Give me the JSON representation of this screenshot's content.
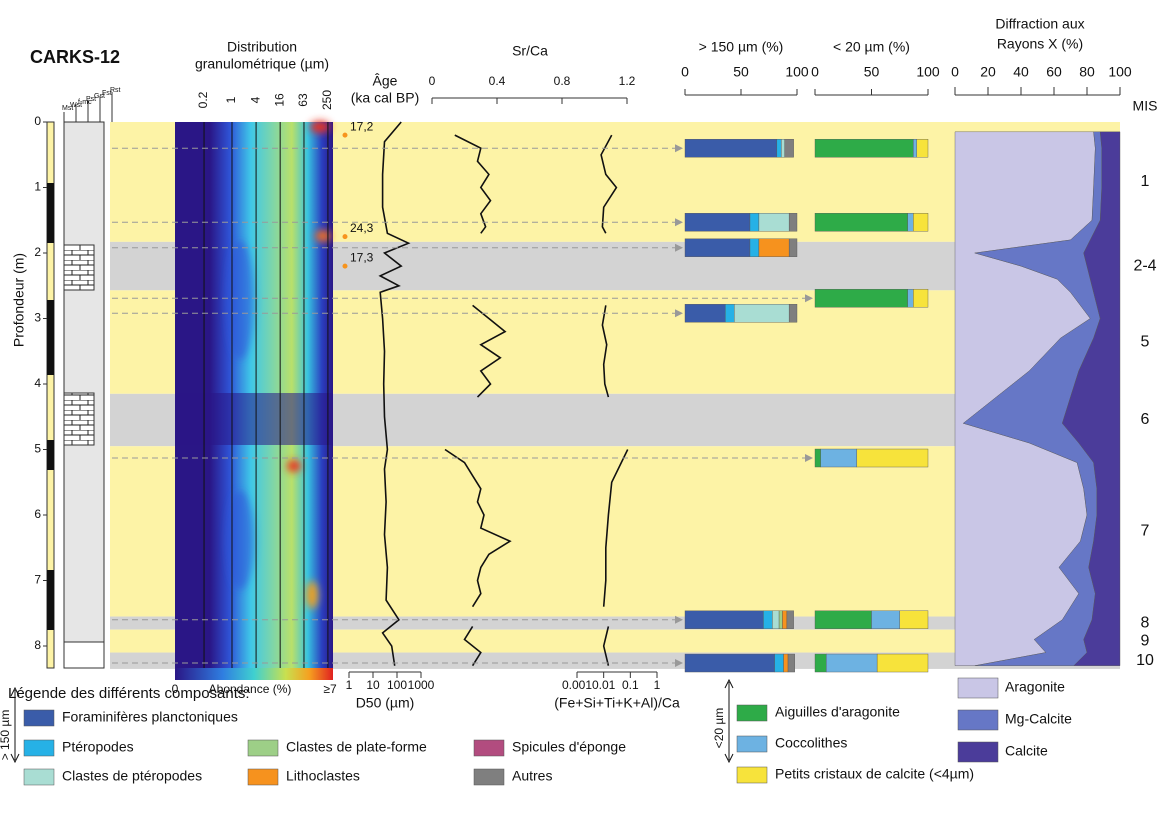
{
  "chart_data": {
    "type": "core-log",
    "title": "CARKS-12",
    "depth": {
      "label": "Profondeur (m)",
      "lim": [
        0,
        8.35
      ],
      "ticks": [
        0,
        1,
        2,
        3,
        4,
        5,
        6,
        7,
        8
      ]
    },
    "lithology_labels": [
      "Mst",
      "Wst",
      "f-mc",
      "Pst",
      "Gst",
      "Fst",
      "Rst"
    ],
    "mis": {
      "label": "MIS",
      "stages": [
        {
          "name": "1",
          "top": 0,
          "bottom": 1.83,
          "color": "#fdf3a6"
        },
        {
          "name": "2-4",
          "top": 1.83,
          "bottom": 2.57,
          "color": "#d3d3d3"
        },
        {
          "name": "5",
          "top": 2.57,
          "bottom": 4.15,
          "color": "#fdf3a6"
        },
        {
          "name": "6",
          "top": 4.15,
          "bottom": 4.95,
          "color": "#d3d3d3"
        },
        {
          "name": "7",
          "top": 4.95,
          "bottom": 7.55,
          "color": "#fdf3a6"
        },
        {
          "name": "8",
          "top": 7.55,
          "bottom": 7.75,
          "color": "#d3d3d3"
        },
        {
          "name": "9",
          "top": 7.75,
          "bottom": 8.1,
          "color": "#fdf3a6"
        },
        {
          "name": "10",
          "top": 8.1,
          "bottom": 8.35,
          "color": "#d3d3d3"
        }
      ]
    },
    "grain_size": {
      "title": [
        "Distribution",
        "granulométrique (µm)"
      ],
      "ticks": [
        0.2,
        1,
        4,
        16,
        63,
        250
      ],
      "colorbar": {
        "label": "Abondance (%)",
        "min_label": "0",
        "max_label": "≥7"
      }
    },
    "age": {
      "label": [
        "Âge",
        "(ka cal BP)"
      ],
      "color": "#f7941d",
      "points": [
        {
          "depth": 0.2,
          "label": "17,2"
        },
        {
          "depth": 1.75,
          "label": "24,3"
        },
        {
          "depth": 2.2,
          "label": "17,3"
        }
      ]
    },
    "d50": {
      "label": "D50 (µm)",
      "log": true,
      "xticks": [
        1,
        10,
        100,
        1000
      ],
      "depth": [
        0,
        0.3,
        0.8,
        1.3,
        1.7,
        1.85,
        2.0,
        2.2,
        2.35,
        2.5,
        2.6,
        3.0,
        3.5,
        4.0,
        4.5,
        5.0,
        5.3,
        5.8,
        6.3,
        6.8,
        7.3,
        7.6,
        7.8,
        8.0,
        8.3
      ],
      "values": [
        150,
        30,
        25,
        25,
        40,
        300,
        30,
        150,
        20,
        120,
        20,
        25,
        30,
        28,
        30,
        40,
        30,
        35,
        30,
        40,
        35,
        120,
        25,
        60,
        80
      ]
    },
    "srca": {
      "label": "Sr/Ca",
      "xlim": [
        0,
        1.2
      ],
      "xticks": [
        0,
        0.4,
        0.8,
        1.2
      ],
      "depth": [
        0.2,
        0.4,
        0.6,
        0.8,
        1.0,
        1.2,
        1.4,
        1.6,
        1.7,
        null,
        2.8,
        3.0,
        3.2,
        3.4,
        3.6,
        3.8,
        4.0,
        4.2,
        null,
        5.0,
        5.2,
        5.4,
        5.6,
        5.8,
        6.0,
        6.2,
        6.4,
        6.6,
        6.8,
        7.0,
        7.2,
        7.4,
        null,
        7.7,
        7.9,
        8.1,
        8.3
      ],
      "values": [
        0.14,
        0.3,
        0.28,
        0.35,
        0.3,
        0.36,
        0.3,
        0.33,
        0.3,
        null,
        0.25,
        0.35,
        0.45,
        0.3,
        0.42,
        0.3,
        0.36,
        0.28,
        null,
        0.08,
        0.2,
        0.25,
        0.3,
        0.28,
        0.32,
        0.3,
        0.48,
        0.35,
        0.3,
        0.28,
        0.3,
        0.25,
        null,
        0.25,
        0.2,
        0.3,
        0.25
      ]
    },
    "fe": {
      "label": "(Fe+Si+Ti+K+Al)/Ca",
      "log": true,
      "xlim": [
        0.001,
        1
      ],
      "xticks": [
        0.001,
        0.01,
        0.1,
        1
      ],
      "depth": [
        0.2,
        0.5,
        0.8,
        1.0,
        1.3,
        1.6,
        1.7,
        null,
        2.8,
        3.1,
        3.4,
        3.7,
        4.0,
        4.2,
        null,
        5.0,
        5.5,
        6.0,
        6.5,
        7.0,
        7.4,
        null,
        7.7,
        8.0,
        8.3
      ],
      "values": [
        0.02,
        0.008,
        0.012,
        0.03,
        0.01,
        0.009,
        0.012,
        null,
        0.012,
        0.009,
        0.013,
        0.01,
        0.011,
        0.015,
        null,
        0.08,
        0.02,
        0.015,
        0.012,
        0.012,
        0.01,
        null,
        0.015,
        0.01,
        0.015
      ]
    },
    "coarse": {
      "title": "> 150 µm (%)",
      "xlim": [
        0,
        100
      ],
      "xticks": [
        0,
        50,
        100
      ],
      "components": [
        {
          "name": "Foraminifères planctoniques",
          "color": "#3a5ca9"
        },
        {
          "name": "Ptéropodes",
          "color": "#26b1e6"
        },
        {
          "name": "Clastes de ptéropodes",
          "color": "#a9ddd3"
        },
        {
          "name": "Clastes de plate-forme",
          "color": "#9dcf87"
        },
        {
          "name": "Lithoclastes",
          "color": "#f6921e"
        },
        {
          "name": "Spicules d'éponge",
          "color": "#b24c7f"
        },
        {
          "name": "Autres",
          "color": "#7f7f7f"
        }
      ]
    },
    "fine": {
      "title": "< 20 µm (%)",
      "xlim": [
        0,
        100
      ],
      "xticks": [
        0,
        50,
        100
      ],
      "components": [
        {
          "name": "Aiguilles d'aragonite",
          "color": "#2eab48"
        },
        {
          "name": "Coccolithes",
          "color": "#6db2e2"
        },
        {
          "name": "Petits cristaux de calcite (<4µm)",
          "color": "#f7e33b"
        }
      ]
    },
    "samples": [
      {
        "depth": 0.4,
        "coarse": [
          82,
          4,
          3,
          0,
          0,
          0,
          8
        ],
        "fine": [
          87,
          3,
          10
        ]
      },
      {
        "depth": 1.53,
        "coarse": [
          58,
          8,
          27,
          0,
          0,
          0,
          7
        ],
        "fine": [
          82,
          5,
          13
        ]
      },
      {
        "depth": 1.92,
        "coarse": [
          58,
          8,
          0,
          0,
          27,
          0,
          7
        ],
        "fine": null
      },
      {
        "depth": 2.69,
        "coarse": null,
        "fine": [
          82,
          5,
          13
        ]
      },
      {
        "depth": 2.92,
        "coarse": [
          36,
          8,
          49,
          0,
          0,
          0,
          7
        ],
        "fine": null
      },
      {
        "depth": 5.13,
        "coarse": null,
        "fine": [
          5,
          32,
          63
        ]
      },
      {
        "depth": 7.6,
        "coarse": [
          70,
          8,
          6,
          3,
          4,
          0,
          6
        ],
        "fine": [
          50,
          25,
          25
        ]
      },
      {
        "depth": 8.26,
        "coarse": [
          80,
          8,
          0,
          0,
          4,
          0,
          6
        ],
        "fine": [
          10,
          45,
          45
        ]
      }
    ],
    "xrd": {
      "title": [
        "Diffraction aux",
        "Rayons X (%)"
      ],
      "xlim": [
        0,
        100
      ],
      "xticks": [
        0,
        20,
        40,
        60,
        80,
        100
      ],
      "depth": [
        0.15,
        0.4,
        1.0,
        1.5,
        1.8,
        2.0,
        2.2,
        2.4,
        2.6,
        3.0,
        3.3,
        3.8,
        4.2,
        4.6,
        4.9,
        5.2,
        5.6,
        6.0,
        6.4,
        6.8,
        7.2,
        7.6,
        7.9,
        8.1,
        8.3
      ],
      "series": [
        {
          "name": "Aragonite",
          "color": "#c9c6e6",
          "values": [
            84,
            85,
            84,
            83,
            70,
            12,
            40,
            62,
            70,
            82,
            64,
            45,
            25,
            5,
            45,
            74,
            78,
            80,
            76,
            63,
            75,
            65,
            48,
            55,
            12
          ]
        },
        {
          "name": "Mg-Calcite",
          "color": "#6677c6",
          "values": [
            4,
            4,
            5,
            5,
            12,
            66,
            40,
            20,
            14,
            6,
            20,
            30,
            45,
            60,
            30,
            10,
            8,
            6,
            8,
            18,
            10,
            18,
            30,
            25,
            60
          ]
        },
        {
          "name": "Calcite",
          "color": "#4b3c9a",
          "values": [
            12,
            11,
            11,
            12,
            18,
            22,
            20,
            18,
            16,
            12,
            16,
            25,
            30,
            35,
            25,
            16,
            14,
            14,
            16,
            19,
            15,
            17,
            22,
            20,
            28
          ]
        }
      ]
    },
    "legend": {
      "title": "Légende des différents composants:",
      "coarse_label": "> 150 µm",
      "fine_label": "<20 µm"
    }
  }
}
